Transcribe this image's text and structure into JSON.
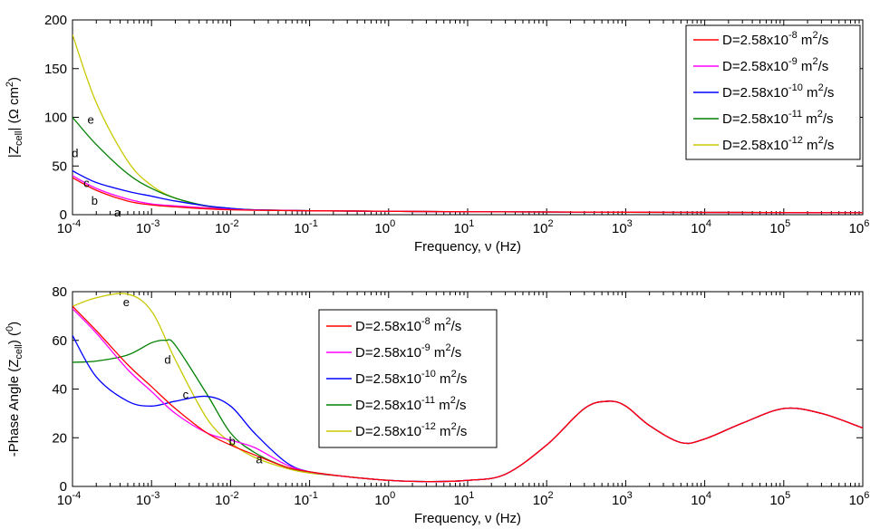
{
  "chart_data": [
    {
      "type": "line",
      "panel": "top",
      "xscale": "log",
      "xlim": [
        0.0001,
        1000000
      ],
      "ylim": [
        0,
        200
      ],
      "xticks": [
        {
          "base": "10",
          "exp": "-4"
        },
        {
          "base": "10",
          "exp": "-3"
        },
        {
          "base": "10",
          "exp": "-2"
        },
        {
          "base": "10",
          "exp": "-1"
        },
        {
          "base": "10",
          "exp": "0"
        },
        {
          "base": "10",
          "exp": "1"
        },
        {
          "base": "10",
          "exp": "2"
        },
        {
          "base": "10",
          "exp": "3"
        },
        {
          "base": "10",
          "exp": "4"
        },
        {
          "base": "10",
          "exp": "5"
        },
        {
          "base": "10",
          "exp": "6"
        }
      ],
      "yticks": [
        "0",
        "50",
        "100",
        "150",
        "200"
      ],
      "xlabel": "Frequency, ν (Hz)",
      "ylabel": {
        "pre": "|Z",
        "sub": "cell",
        "post": "| (Ω cm",
        "sup": "2",
        "end": ")"
      },
      "legend_position": "top-right",
      "grid": false,
      "series": [
        {
          "name": {
            "pre": "D=2.58x10",
            "sup": "-8",
            "post": " m",
            "sup2": "2",
            "end": "/s"
          },
          "color": "#ff0000",
          "label": "a",
          "x": [
            0.0001,
            0.0002,
            0.0005,
            0.001,
            0.002,
            0.005,
            0.01,
            0.02,
            0.1,
            1,
            10,
            1000,
            1000000
          ],
          "y": [
            38,
            25,
            14,
            10,
            8,
            6,
            5,
            4.5,
            4,
            3.5,
            3,
            2.5,
            2
          ]
        },
        {
          "name": {
            "pre": "D=2.58x10",
            "sup": "-9",
            "post": " m",
            "sup2": "2",
            "end": "/s"
          },
          "color": "#ff00ff",
          "label": "b",
          "x": [
            0.0001,
            0.0002,
            0.0005,
            0.001,
            0.002,
            0.005,
            0.01,
            0.02,
            0.1,
            1,
            10,
            1000,
            1000000
          ],
          "y": [
            40,
            27,
            16,
            11,
            9,
            7,
            5.5,
            4.8,
            4,
            3.5,
            3,
            2.5,
            2
          ]
        },
        {
          "name": {
            "pre": "D=2.58x10",
            "sup": "-10",
            "post": " m",
            "sup2": "2",
            "end": "/s"
          },
          "color": "#0000ff",
          "label": "c",
          "x": [
            0.0001,
            0.0002,
            0.0005,
            0.001,
            0.002,
            0.005,
            0.01,
            0.02,
            0.1,
            1,
            10,
            1000,
            1000000
          ],
          "y": [
            45,
            33,
            24,
            19,
            14,
            9,
            6.5,
            5,
            4,
            3.5,
            3,
            2.5,
            2
          ]
        },
        {
          "name": {
            "pre": "D=2.58x10",
            "sup": "-11",
            "post": " m",
            "sup2": "2",
            "end": "/s"
          },
          "color": "#008000",
          "label": "d",
          "x": [
            0.0001,
            0.0002,
            0.0005,
            0.001,
            0.002,
            0.005,
            0.01,
            0.02,
            0.1,
            1,
            10,
            1000,
            1000000
          ],
          "y": [
            100,
            72,
            42,
            27,
            17,
            9,
            6.5,
            5,
            4,
            3.5,
            3,
            2.5,
            2
          ]
        },
        {
          "name": {
            "pre": "D=2.58x10",
            "sup": "-12",
            "post": " m",
            "sup2": "2",
            "end": "/s"
          },
          "color": "#c8c800",
          "label": "e",
          "x": [
            0.0001,
            0.0002,
            0.0005,
            0.001,
            0.002,
            0.005,
            0.01,
            0.02,
            0.1,
            1,
            10,
            1000,
            1000000
          ],
          "y": [
            185,
            115,
            55,
            30,
            17,
            8.5,
            6,
            5,
            4,
            3.5,
            3,
            2.5,
            2
          ]
        }
      ],
      "curve_labels": [
        {
          "text": "a",
          "x": 0.00037,
          "y": 2
        },
        {
          "text": "b",
          "x": 0.00019,
          "y": 14
        },
        {
          "text": "c",
          "x": 0.00015,
          "y": 32
        },
        {
          "text": "d",
          "x": 0.000108,
          "y": 63
        },
        {
          "text": "e",
          "x": 0.00017,
          "y": 97
        }
      ]
    },
    {
      "type": "line",
      "panel": "bottom",
      "xscale": "log",
      "xlim": [
        0.0001,
        1000000
      ],
      "ylim": [
        0,
        80
      ],
      "xticks": [
        {
          "base": "10",
          "exp": "-4"
        },
        {
          "base": "10",
          "exp": "-3"
        },
        {
          "base": "10",
          "exp": "-2"
        },
        {
          "base": "10",
          "exp": "-1"
        },
        {
          "base": "10",
          "exp": "0"
        },
        {
          "base": "10",
          "exp": "1"
        },
        {
          "base": "10",
          "exp": "2"
        },
        {
          "base": "10",
          "exp": "3"
        },
        {
          "base": "10",
          "exp": "4"
        },
        {
          "base": "10",
          "exp": "5"
        },
        {
          "base": "10",
          "exp": "6"
        }
      ],
      "yticks": [
        "0",
        "20",
        "40",
        "60",
        "80"
      ],
      "xlabel": "Frequency, ν (Hz)",
      "ylabel": {
        "pre": "-Phase Angle (Z",
        "sub": "cell",
        "post": ") (",
        "sup": "0",
        "end": ")"
      },
      "legend_position": "upper-center",
      "grid": false,
      "series": [
        {
          "name": {
            "pre": "D=2.58x10",
            "sup": "-8",
            "post": " m",
            "sup2": "2",
            "end": "/s"
          },
          "color": "#ff0000",
          "label": "a",
          "x": [
            0.0001,
            0.0002,
            0.0005,
            0.001,
            0.002,
            0.005,
            0.01,
            0.02,
            0.05,
            0.1,
            0.3,
            1,
            3,
            10,
            30,
            100,
            300,
            600,
            1000,
            2000,
            5000,
            10000,
            30000,
            100000,
            300000,
            1000000
          ],
          "y": [
            74,
            64,
            50,
            41,
            32,
            22,
            17,
            13,
            8,
            6,
            4,
            2.5,
            2,
            2.5,
            5,
            17,
            32,
            35,
            33,
            25,
            18,
            19.5,
            26,
            32,
            30,
            24
          ]
        },
        {
          "name": {
            "pre": "D=2.58x10",
            "sup": "-9",
            "post": " m",
            "sup2": "2",
            "end": "/s"
          },
          "color": "#ff00ff",
          "label": "b",
          "x": [
            0.0001,
            0.0002,
            0.0005,
            0.001,
            0.002,
            0.005,
            0.01,
            0.02,
            0.05,
            0.1,
            0.3,
            1,
            3,
            10,
            30,
            100,
            300,
            600,
            1000,
            2000,
            5000,
            10000,
            30000,
            100000,
            300000,
            1000000
          ],
          "y": [
            73,
            63,
            48,
            39,
            30,
            22,
            19,
            16,
            9,
            6,
            4,
            2.5,
            2,
            2.5,
            5,
            17,
            32,
            35,
            33,
            25,
            18,
            19.5,
            26,
            32,
            30,
            24
          ]
        },
        {
          "name": {
            "pre": "D=2.58x10",
            "sup": "-10",
            "post": " m",
            "sup2": "2",
            "end": "/s"
          },
          "color": "#0000ff",
          "label": "c",
          "x": [
            0.0001,
            0.0002,
            0.0005,
            0.001,
            0.002,
            0.005,
            0.01,
            0.02,
            0.05,
            0.1,
            0.3,
            1,
            3,
            10,
            30,
            100,
            300,
            600,
            1000,
            2000,
            5000,
            10000,
            30000,
            100000,
            300000,
            1000000
          ],
          "y": [
            62,
            45,
            35,
            33,
            35,
            37,
            33,
            22,
            10,
            6,
            4,
            2.5,
            2,
            2.5,
            5,
            17,
            32,
            35,
            33,
            25,
            18,
            19.5,
            26,
            32,
            30,
            24
          ]
        },
        {
          "name": {
            "pre": "D=2.58x10",
            "sup": "-11",
            "post": " m",
            "sup2": "2",
            "end": "/s"
          },
          "color": "#008000",
          "label": "d",
          "x": [
            0.0001,
            0.0002,
            0.0005,
            0.001,
            0.0015,
            0.002,
            0.005,
            0.01,
            0.02,
            0.05,
            0.1,
            0.3,
            1,
            3,
            10,
            30,
            100,
            300,
            600,
            1000,
            2000,
            5000,
            10000,
            30000,
            100000,
            300000,
            1000000
          ],
          "y": [
            51,
            51.5,
            54,
            59,
            60,
            58,
            38,
            22,
            14,
            8,
            6,
            4,
            2.5,
            2,
            2.5,
            5,
            17,
            32,
            35,
            33,
            25,
            18,
            19.5,
            26,
            32,
            30,
            24
          ]
        },
        {
          "name": {
            "pre": "D=2.58x10",
            "sup": "-12",
            "post": " m",
            "sup2": "2",
            "end": "/s"
          },
          "color": "#c8c800",
          "label": "e",
          "x": [
            0.0001,
            0.0002,
            0.0005,
            0.001,
            0.002,
            0.005,
            0.01,
            0.02,
            0.05,
            0.1,
            0.3,
            1,
            3,
            10,
            30,
            100,
            300,
            600,
            1000,
            2000,
            5000,
            10000,
            30000,
            100000,
            300000,
            1000000
          ],
          "y": [
            74,
            77.5,
            79,
            72,
            52,
            28,
            18,
            12,
            7.5,
            5.5,
            4,
            2.5,
            2,
            2.5,
            5,
            17,
            32,
            35,
            33,
            25,
            18,
            19.5,
            26,
            32,
            30,
            24
          ]
        }
      ],
      "curve_labels": [
        {
          "text": "a",
          "x": 0.023,
          "y": 11
        },
        {
          "text": "b",
          "x": 0.0105,
          "y": 18.5
        },
        {
          "text": "c",
          "x": 0.0027,
          "y": 37.5
        },
        {
          "text": "d",
          "x": 0.0016,
          "y": 52
        },
        {
          "text": "e",
          "x": 0.00048,
          "y": 75.5
        }
      ]
    }
  ]
}
